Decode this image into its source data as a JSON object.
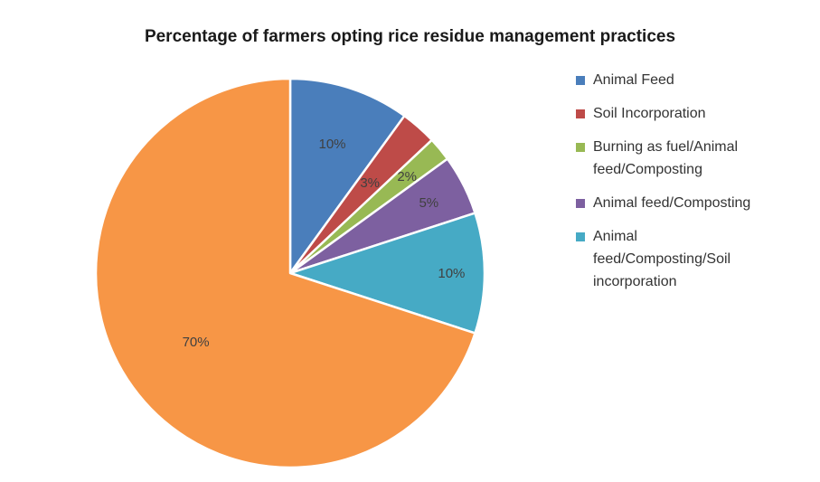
{
  "chart_data": {
    "type": "pie",
    "title": "Percentage of farmers opting rice residue management practices",
    "slices": [
      {
        "label": "Animal Feed",
        "value": 10,
        "data_label": "10%",
        "color": "#4a7ebb"
      },
      {
        "label": "Soil Incorporation",
        "value": 3,
        "data_label": "3%",
        "color": "#be4b48"
      },
      {
        "label": "Burning as fuel/Animal feed/Composting",
        "value": 2,
        "data_label": "2%",
        "color": "#98b954"
      },
      {
        "label": "Animal feed/Composting",
        "value": 5,
        "data_label": "5%",
        "color": "#7d60a0"
      },
      {
        "label": "Animal feed/Composting/Soil incorporation",
        "value": 10,
        "data_label": "10%",
        "color": "#46aac5"
      },
      {
        "label": "",
        "value": 70,
        "data_label": "70%",
        "color": "#f79646"
      }
    ],
    "legend_position": "right",
    "legend": [
      {
        "lines": [
          "Animal Feed"
        ],
        "color": "#4a7ebb"
      },
      {
        "lines": [
          "Soil Incorporation"
        ],
        "color": "#be4b48"
      },
      {
        "lines": [
          "Burning as fuel/Animal",
          "feed/Composting"
        ],
        "color": "#98b954"
      },
      {
        "lines": [
          "Animal feed/Composting"
        ],
        "color": "#7d60a0"
      },
      {
        "lines": [
          "Animal",
          "feed/Composting/Soil",
          "incorporation"
        ],
        "color": "#46aac5"
      }
    ]
  }
}
